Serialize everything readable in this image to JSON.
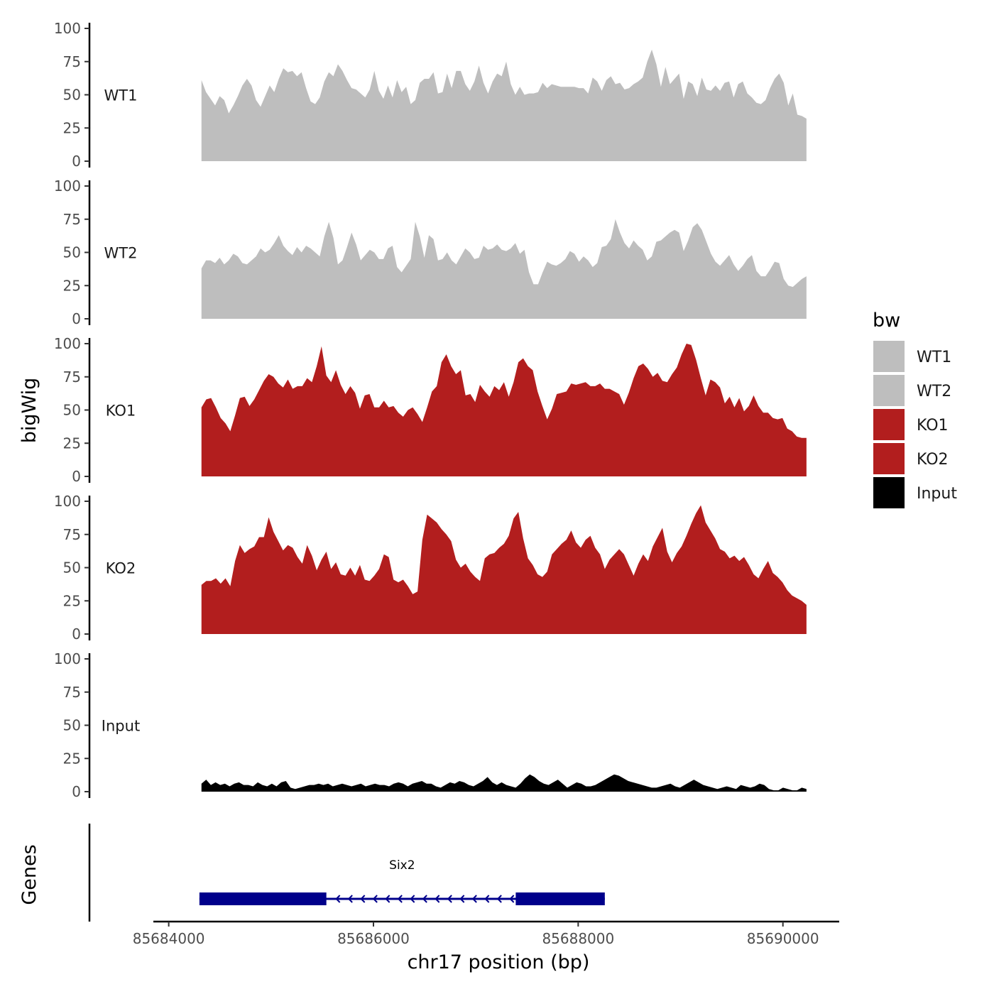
{
  "chart_data": {
    "type": "area",
    "x_axis": {
      "title": "chr17 position (bp)",
      "range": [
        85683850,
        85690550
      ],
      "ticks": [
        85684000,
        85686000,
        85688000,
        85690000
      ],
      "tick_labels": [
        "85684000",
        "85686000",
        "85688000",
        "85690000"
      ]
    },
    "y_axis": {
      "title": "bigWig",
      "range": [
        0,
        105
      ],
      "ticks": [
        0,
        25,
        50,
        75,
        100
      ],
      "tick_labels": [
        "0",
        "25",
        "50",
        "75",
        "100"
      ]
    },
    "genes_axis_title": "Genes",
    "region": {
      "start": 85684320,
      "end": 85690230
    },
    "tracks": [
      {
        "name": "WT1",
        "color": "#bebebe",
        "values": [
          61,
          52,
          47,
          42,
          49,
          46,
          36,
          42,
          49,
          57,
          62,
          57,
          46,
          41,
          49,
          57,
          52,
          62,
          70,
          67,
          68,
          64,
          67,
          55,
          45,
          43,
          48,
          60,
          67,
          64,
          73,
          68,
          61,
          55,
          54,
          51,
          48,
          54,
          68,
          53,
          47,
          57,
          48,
          61,
          52,
          56,
          43,
          46,
          59,
          62,
          62,
          67,
          51,
          52,
          66,
          55,
          68,
          68,
          58,
          53,
          60,
          72,
          59,
          51,
          60,
          66,
          64,
          75,
          58,
          50,
          56,
          50,
          51,
          51,
          52,
          59,
          55,
          58,
          57,
          56,
          56,
          56,
          56,
          55,
          55,
          51,
          63,
          60,
          53,
          61,
          64,
          58,
          59,
          54,
          55,
          58,
          60,
          63,
          75,
          84,
          73,
          56,
          71,
          58,
          62,
          66,
          47,
          60,
          58,
          49,
          63,
          54,
          53,
          57,
          53,
          59,
          60,
          48,
          58,
          60,
          51,
          48,
          44,
          43,
          46,
          55,
          62,
          66,
          59,
          42,
          51,
          35,
          34,
          32
        ]
      },
      {
        "name": "WT2",
        "color": "#bebebe",
        "values": [
          38,
          44,
          44,
          42,
          46,
          41,
          44,
          49,
          47,
          42,
          41,
          44,
          47,
          53,
          50,
          52,
          57,
          63,
          55,
          51,
          48,
          54,
          50,
          55,
          53,
          50,
          47,
          62,
          73,
          61,
          41,
          44,
          54,
          65,
          56,
          44,
          48,
          52,
          50,
          45,
          45,
          53,
          55,
          39,
          35,
          40,
          45,
          73,
          62,
          46,
          63,
          60,
          44,
          45,
          50,
          44,
          41,
          47,
          53,
          50,
          45,
          46,
          55,
          52,
          53,
          56,
          52,
          51,
          53,
          57,
          49,
          52,
          35,
          26,
          26,
          35,
          43,
          41,
          40,
          42,
          45,
          51,
          49,
          43,
          47,
          44,
          39,
          42,
          54,
          55,
          60,
          75,
          65,
          57,
          53,
          59,
          55,
          52,
          44,
          47,
          58,
          59,
          62,
          65,
          67,
          65,
          51,
          59,
          69,
          72,
          67,
          58,
          49,
          43,
          40,
          44,
          48,
          41,
          36,
          40,
          45,
          48,
          36,
          32,
          32,
          37,
          43,
          42,
          30,
          25,
          24,
          27,
          30,
          32
        ]
      },
      {
        "name": "KO1",
        "color": "#b21e1e",
        "values": [
          52,
          58,
          59,
          52,
          44,
          40,
          34,
          46,
          59,
          60,
          53,
          58,
          65,
          72,
          77,
          75,
          70,
          67,
          73,
          66,
          68,
          68,
          74,
          71,
          83,
          98,
          76,
          71,
          80,
          69,
          62,
          68,
          63,
          51,
          61,
          62,
          52,
          52,
          57,
          52,
          53,
          48,
          45,
          50,
          52,
          47,
          41,
          52,
          64,
          68,
          86,
          92,
          83,
          77,
          80,
          61,
          62,
          56,
          69,
          64,
          60,
          68,
          65,
          71,
          60,
          71,
          86,
          89,
          83,
          80,
          64,
          53,
          43,
          51,
          62,
          63,
          64,
          70,
          69,
          70,
          71,
          68,
          68,
          70,
          66,
          66,
          64,
          62,
          54,
          63,
          74,
          83,
          85,
          81,
          75,
          78,
          72,
          71,
          77,
          82,
          92,
          100,
          99,
          88,
          74,
          61,
          73,
          71,
          67,
          55,
          60,
          52,
          59,
          49,
          53,
          61,
          53,
          48,
          48,
          44,
          43,
          44,
          36,
          34,
          30,
          29,
          29
        ]
      },
      {
        "name": "KO2",
        "color": "#b21e1e",
        "values": [
          37,
          40,
          40,
          42,
          38,
          42,
          36,
          55,
          67,
          61,
          64,
          66,
          73,
          73,
          88,
          77,
          70,
          63,
          67,
          65,
          58,
          53,
          67,
          59,
          48,
          56,
          62,
          49,
          54,
          45,
          44,
          50,
          44,
          52,
          41,
          40,
          44,
          49,
          60,
          58,
          41,
          39,
          41,
          36,
          30,
          32,
          71,
          90,
          87,
          84,
          79,
          75,
          70,
          56,
          50,
          53,
          47,
          43,
          40,
          57,
          60,
          61,
          65,
          68,
          74,
          87,
          92,
          72,
          57,
          52,
          45,
          43,
          47,
          60,
          64,
          68,
          71,
          78,
          69,
          65,
          71,
          74,
          65,
          60,
          49,
          56,
          60,
          64,
          60,
          52,
          44,
          53,
          60,
          55,
          66,
          73,
          80,
          62,
          54,
          61,
          66,
          74,
          83,
          91,
          97,
          84,
          78,
          72,
          64,
          62,
          57,
          59,
          55,
          58,
          52,
          45,
          42,
          49,
          55,
          46,
          43,
          39,
          33,
          29,
          27,
          25,
          22
        ]
      },
      {
        "name": "Input",
        "color": "#000000",
        "values": [
          6,
          9,
          5,
          7,
          5,
          6,
          4,
          6,
          7,
          5,
          5,
          4,
          7,
          5,
          4,
          6,
          4,
          7,
          8,
          3,
          2,
          3,
          4,
          5,
          5,
          6,
          5,
          6,
          4,
          5,
          6,
          5,
          4,
          5,
          6,
          4,
          5,
          6,
          5,
          5,
          4,
          6,
          7,
          6,
          4,
          6,
          7,
          8,
          6,
          6,
          4,
          3,
          5,
          7,
          6,
          8,
          7,
          5,
          4,
          6,
          8,
          11,
          7,
          5,
          7,
          5,
          4,
          3,
          6,
          10,
          13,
          11,
          8,
          6,
          5,
          7,
          9,
          6,
          3,
          5,
          7,
          6,
          4,
          4,
          5,
          7,
          9,
          11,
          13,
          12,
          10,
          8,
          7,
          6,
          5,
          4,
          3,
          3,
          4,
          5,
          6,
          4,
          3,
          5,
          7,
          9,
          7,
          5,
          4,
          3,
          2,
          3,
          4,
          3,
          2,
          5,
          4,
          3,
          4,
          6,
          5,
          2,
          1,
          1,
          3,
          2,
          1,
          1,
          3,
          2
        ]
      }
    ],
    "gene": {
      "name": "Six2",
      "strand": "-",
      "color": "#00008b",
      "start": 85684300,
      "end": 85688260,
      "exons": [
        [
          85684300,
          85685540
        ],
        [
          85687390,
          85688260
        ]
      ]
    },
    "legend": {
      "title": "bw",
      "position": "right",
      "entries": [
        {
          "label": "WT1",
          "color": "#bebebe"
        },
        {
          "label": "WT2",
          "color": "#bebebe"
        },
        {
          "label": "KO1",
          "color": "#b21e1e"
        },
        {
          "label": "KO2",
          "color": "#b21e1e"
        },
        {
          "label": "Input",
          "color": "#000000"
        }
      ]
    }
  }
}
